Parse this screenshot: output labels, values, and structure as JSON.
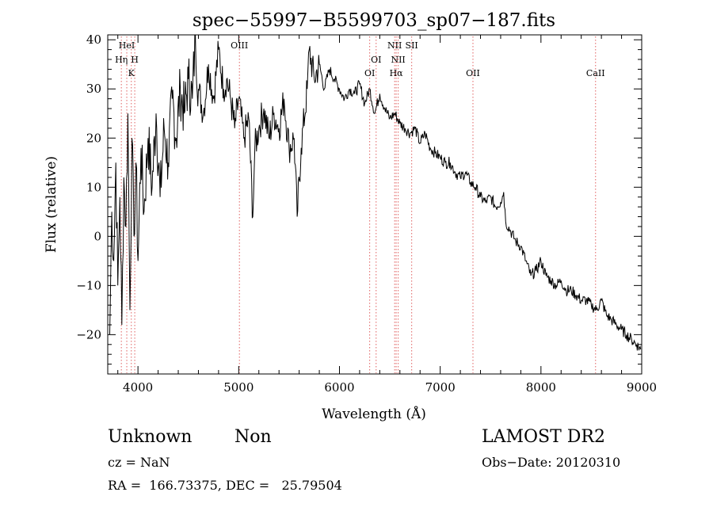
{
  "chart_data": {
    "type": "line",
    "title": "spec−55997−B5599703_sp07−187.fits",
    "xlabel": "Wavelength (Å)",
    "ylabel": "Flux (relative)",
    "xlim": [
      3700,
      9000
    ],
    "ylim": [
      -28,
      41
    ],
    "xticks": [
      4000,
      5000,
      6000,
      7000,
      8000,
      9000
    ],
    "xtick_labels": [
      "4000",
      "5000",
      "6000",
      "7000",
      "8000",
      "9000"
    ],
    "yticks": [
      -20,
      -10,
      0,
      10,
      20,
      30,
      40
    ],
    "ytick_labels": [
      "−20",
      "−10",
      "0",
      "10",
      "20",
      "30",
      "40"
    ],
    "grid": false,
    "legend": "none",
    "line_color": "#000000",
    "marker_color": "#e06060",
    "lines": [
      {
        "label": "HeI",
        "x": 3889,
        "row": 0
      },
      {
        "label": "Hη",
        "x": 3835,
        "row": 1
      },
      {
        "label": "H",
        "x": 3968,
        "row": 1
      },
      {
        "label": "K",
        "x": 3934,
        "row": 2
      },
      {
        "label": "OIII",
        "x": 5007,
        "row": 0
      },
      {
        "label": "NII",
        "x": 6548,
        "row": 0
      },
      {
        "label": "SII",
        "x": 6717,
        "row": 0
      },
      {
        "label": "OI",
        "x": 6364,
        "row": 1
      },
      {
        "label": "NII",
        "x": 6583,
        "row": 1
      },
      {
        "label": "OI",
        "x": 6300,
        "row": 2
      },
      {
        "label": "Hα",
        "x": 6563,
        "row": 2
      },
      {
        "label": "OII",
        "x": 7325,
        "row": 2
      },
      {
        "label": "CaII",
        "x": 8542,
        "row": 2
      }
    ],
    "series": [
      {
        "x": [
          3720,
          3740,
          3760,
          3780,
          3800,
          3820,
          3840,
          3860,
          3880,
          3900,
          3920,
          3940,
          3960,
          3980,
          4000,
          4030,
          4060,
          4100,
          4140,
          4180,
          4220,
          4260,
          4300,
          4340,
          4380,
          4420,
          4460,
          4500,
          4540,
          4570,
          4600,
          4650,
          4700,
          4750,
          4800,
          4850,
          4880,
          4920,
          4960,
          5000,
          5050,
          5100,
          5140,
          5160,
          5200,
          5250,
          5300,
          5350,
          5400,
          5450,
          5500,
          5550,
          5580,
          5620,
          5680,
          5700,
          5750,
          5800,
          5850,
          5900,
          5950,
          6000,
          6050,
          6100,
          6150,
          6200,
          6250,
          6300,
          6350,
          6400,
          6450,
          6500,
          6550,
          6600,
          6650,
          6700,
          6750,
          6800,
          6850,
          6900,
          6950,
          7000,
          7050,
          7100,
          7150,
          7200,
          7250,
          7300,
          7350,
          7400,
          7450,
          7500,
          7550,
          7600,
          7630,
          7650,
          7700,
          7750,
          7800,
          7850,
          7900,
          7950,
          8000,
          8050,
          8100,
          8150,
          8200,
          8250,
          8300,
          8350,
          8400,
          8450,
          8500,
          8550,
          8600,
          8650,
          8700,
          8750,
          8800,
          8850,
          8900,
          8950,
          8990
        ],
        "y": [
          -20,
          5,
          -5,
          15,
          -10,
          8,
          -18,
          12,
          2,
          25,
          -15,
          20,
          0,
          15,
          -5,
          18,
          5,
          20,
          10,
          25,
          8,
          22,
          15,
          28,
          20,
          30,
          25,
          32,
          28,
          41,
          30,
          25,
          35,
          28,
          38,
          30,
          32,
          28,
          22,
          28,
          20,
          24,
          4,
          18,
          22,
          26,
          20,
          25,
          22,
          28,
          18,
          20,
          4,
          18,
          30,
          38,
          32,
          35,
          30,
          34,
          32,
          30,
          28,
          30,
          29,
          31,
          27,
          30,
          25,
          29,
          26,
          24,
          25,
          23,
          22,
          21,
          22,
          19,
          21,
          18,
          17,
          16,
          15,
          15,
          13,
          12,
          13,
          11,
          10,
          8,
          7,
          8,
          6,
          7,
          9,
          3,
          1,
          -1,
          -2,
          -5,
          -8,
          -7,
          -5,
          -8,
          -9,
          -10,
          -9,
          -11,
          -11,
          -12,
          -13,
          -13,
          -14,
          -15,
          -13,
          -16,
          -17,
          -18,
          -19,
          -20,
          -21,
          -22,
          -23
        ]
      }
    ]
  },
  "info": {
    "obj_class": "Unknown",
    "obj_subclass": "Non",
    "survey": "LAMOST DR2",
    "cz": "cz = NaN",
    "obs_date": "Obs−Date: 20120310",
    "radec": "RA =  166.73375, DEC =   25.79504"
  }
}
